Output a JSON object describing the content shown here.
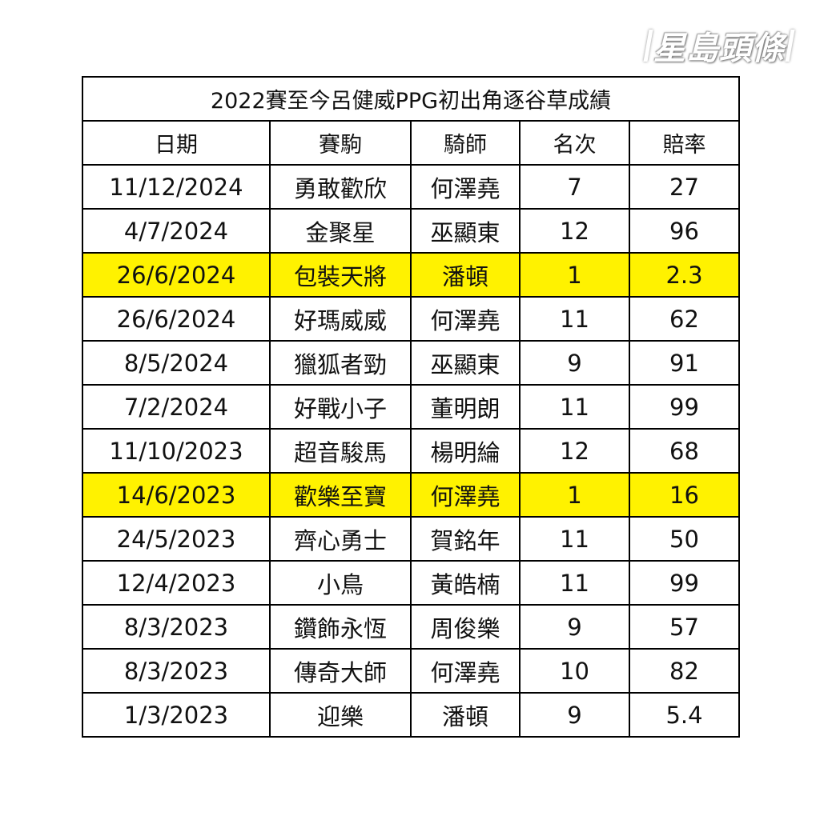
{
  "logo": {
    "text": "星島頭條"
  },
  "table": {
    "title": "2022賽至今呂健威PPG初出角逐谷草成績",
    "headers": [
      "日期",
      "賽駒",
      "騎師",
      "名次",
      "賠率"
    ],
    "highlight_color": "#fff200",
    "rows": [
      {
        "date": "11/12/2024",
        "horse": "勇敢歡欣",
        "jockey": "何澤堯",
        "place": "7",
        "odds": "27",
        "highlight": false
      },
      {
        "date": "4/7/2024",
        "horse": "金聚星",
        "jockey": "巫顯東",
        "place": "12",
        "odds": "96",
        "highlight": false
      },
      {
        "date": "26/6/2024",
        "horse": "包裝天將",
        "jockey": "潘頓",
        "place": "1",
        "odds": "2.3",
        "highlight": true
      },
      {
        "date": "26/6/2024",
        "horse": "好瑪威威",
        "jockey": "何澤堯",
        "place": "11",
        "odds": "62",
        "highlight": false
      },
      {
        "date": "8/5/2024",
        "horse": "獵狐者勁",
        "jockey": "巫顯東",
        "place": "9",
        "odds": "91",
        "highlight": false
      },
      {
        "date": "7/2/2024",
        "horse": "好戰小子",
        "jockey": "董明朗",
        "place": "11",
        "odds": "99",
        "highlight": false
      },
      {
        "date": "11/10/2023",
        "horse": "超音駿馬",
        "jockey": "楊明綸",
        "place": "12",
        "odds": "68",
        "highlight": false
      },
      {
        "date": "14/6/2023",
        "horse": "歡樂至寶",
        "jockey": "何澤堯",
        "place": "1",
        "odds": "16",
        "highlight": true
      },
      {
        "date": "24/5/2023",
        "horse": "齊心勇士",
        "jockey": "賀銘年",
        "place": "11",
        "odds": "50",
        "highlight": false
      },
      {
        "date": "12/4/2023",
        "horse": "小鳥",
        "jockey": "黃皓楠",
        "place": "11",
        "odds": "99",
        "highlight": false
      },
      {
        "date": "8/3/2023",
        "horse": "鑽飾永恆",
        "jockey": "周俊樂",
        "place": "9",
        "odds": "57",
        "highlight": false
      },
      {
        "date": "8/3/2023",
        "horse": "傳奇大師",
        "jockey": "何澤堯",
        "place": "10",
        "odds": "82",
        "highlight": false
      },
      {
        "date": "1/3/2023",
        "horse": "迎樂",
        "jockey": "潘頓",
        "place": "9",
        "odds": "5.4",
        "highlight": false
      }
    ]
  }
}
